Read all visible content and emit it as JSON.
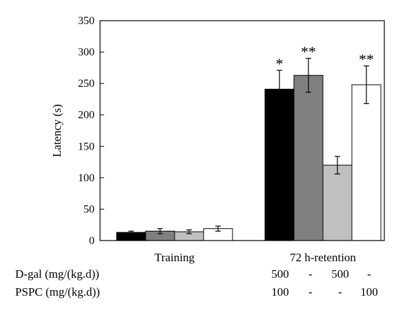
{
  "chart_data": {
    "type": "bar",
    "title": "",
    "xlabel": "",
    "ylabel": "Latency (s)",
    "ylim": [
      0,
      350
    ],
    "yticks": [
      0,
      50,
      100,
      150,
      200,
      250,
      300,
      350
    ],
    "categories": [
      "Training",
      "72 h-retention"
    ],
    "series": [
      {
        "color": "#000000",
        "values": [
          13,
          241
        ],
        "errors": [
          2,
          30
        ],
        "significance": [
          "",
          "*"
        ]
      },
      {
        "color": "#808080",
        "values": [
          15,
          263
        ],
        "errors": [
          4,
          27
        ],
        "significance": [
          "",
          "**"
        ]
      },
      {
        "color": "#c0c0c0",
        "values": [
          14,
          120
        ],
        "errors": [
          3,
          14
        ],
        "significance": [
          "",
          ""
        ]
      },
      {
        "color": "#ffffff",
        "values": [
          19,
          248
        ],
        "errors": [
          4,
          30
        ],
        "significance": [
          "",
          "**"
        ]
      }
    ],
    "grid": false,
    "legend": "none"
  },
  "treatment_table": {
    "rows": [
      {
        "label": "D-gal (mg/(kg.d))",
        "values": [
          "500",
          "-",
          "500",
          "-"
        ]
      },
      {
        "label": "PSPC (mg/(kg.d))",
        "values": [
          "100",
          "-",
          "-",
          "100"
        ]
      }
    ]
  }
}
